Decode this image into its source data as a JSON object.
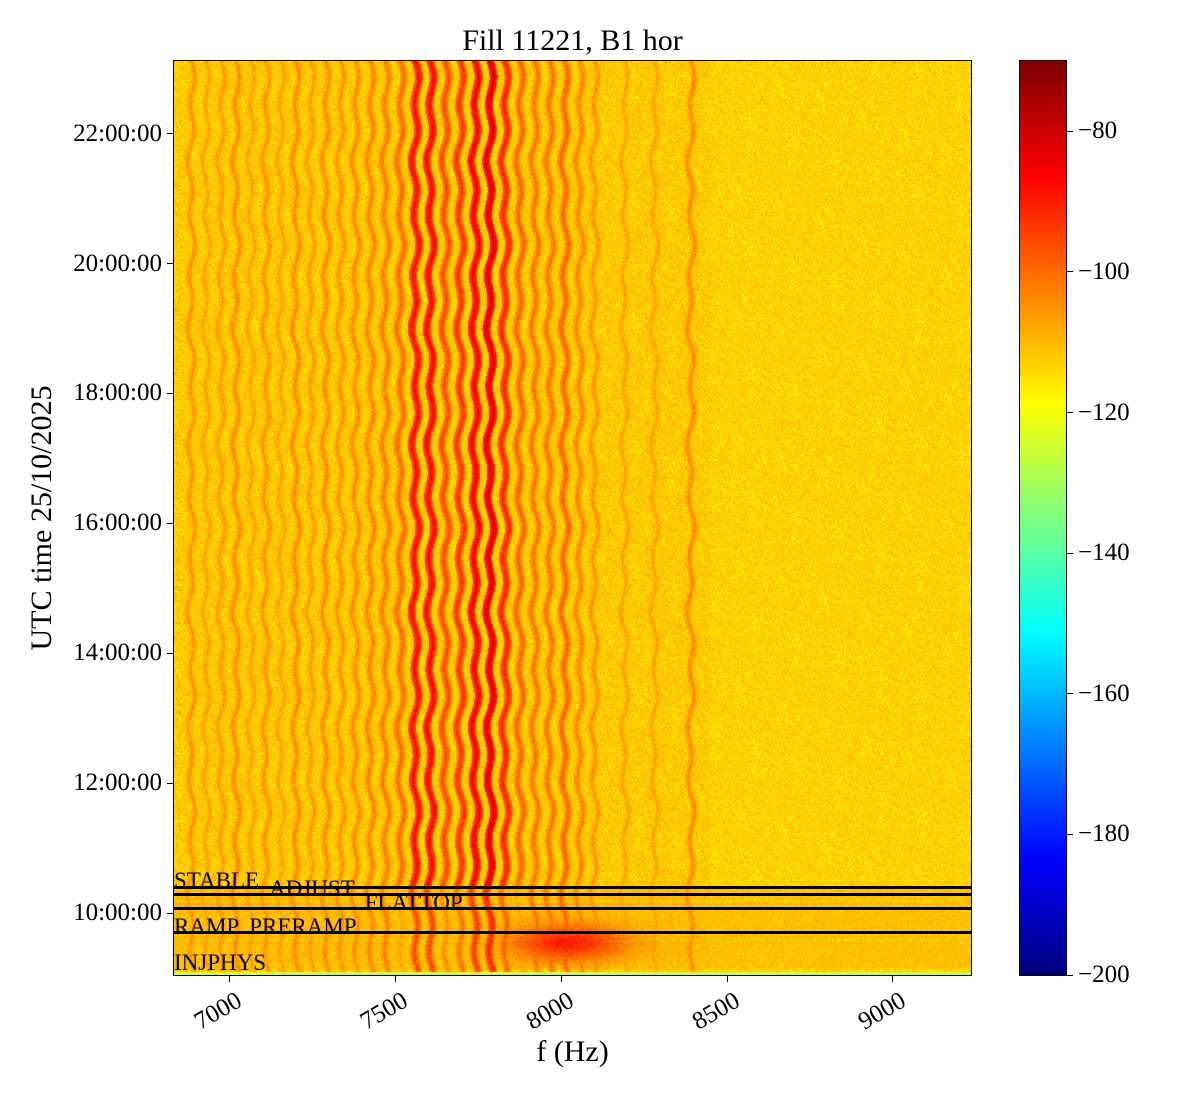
{
  "chart_data": {
    "type": "heatmap",
    "title": "Fill 11221, B1 hor",
    "xlabel": "f (Hz)",
    "ylabel": "UTC time 25/10/2025",
    "xlim": [
      6834,
      9235
    ],
    "ylim": [
      "09:03:00",
      "23:07:00"
    ],
    "xticks": [
      7000,
      7500,
      8000,
      8500,
      9000
    ],
    "xtick_labels": [
      "7000",
      "7500",
      "8000",
      "8500",
      "9000"
    ],
    "yticks": [
      "10:00:00",
      "12:00:00",
      "14:00:00",
      "16:00:00",
      "18:00:00",
      "20:00:00",
      "22:00:00"
    ],
    "colormap": "jet",
    "colorbar": {
      "range": [
        -200,
        -70
      ],
      "ticks": [
        -80,
        -100,
        -120,
        -140,
        -160,
        -180,
        -200
      ],
      "tick_labels": [
        "−80",
        "−100",
        "−120",
        "−140",
        "−160",
        "−180",
        "−200"
      ]
    },
    "background_level_db": -112,
    "spectral_lines": [
      {
        "f": 6885,
        "level": -104
      },
      {
        "f": 6930,
        "level": -106
      },
      {
        "f": 6975,
        "level": -105
      },
      {
        "f": 7020,
        "level": -103
      },
      {
        "f": 7065,
        "level": -106
      },
      {
        "f": 7110,
        "level": -104
      },
      {
        "f": 7155,
        "level": -106
      },
      {
        "f": 7200,
        "level": -103
      },
      {
        "f": 7245,
        "level": -105
      },
      {
        "f": 7290,
        "level": -103
      },
      {
        "f": 7335,
        "level": -104
      },
      {
        "f": 7380,
        "level": -103
      },
      {
        "f": 7425,
        "level": -102
      },
      {
        "f": 7470,
        "level": -101
      },
      {
        "f": 7515,
        "level": -99
      },
      {
        "f": 7560,
        "level": -87
      },
      {
        "f": 7605,
        "level": -86
      },
      {
        "f": 7650,
        "level": -95
      },
      {
        "f": 7695,
        "level": -92
      },
      {
        "f": 7740,
        "level": -85
      },
      {
        "f": 7785,
        "level": -82
      },
      {
        "f": 7830,
        "level": -90
      },
      {
        "f": 7875,
        "level": -98
      },
      {
        "f": 7920,
        "level": -100
      },
      {
        "f": 7965,
        "level": -100
      },
      {
        "f": 8010,
        "level": -98
      },
      {
        "f": 8055,
        "level": -102
      },
      {
        "f": 8100,
        "level": -104
      },
      {
        "f": 8190,
        "level": -106
      },
      {
        "f": 8280,
        "level": -106
      },
      {
        "f": 8390,
        "level": -103
      }
    ],
    "beam_modes": [
      {
        "label": "STABLE",
        "time": "10:24:00"
      },
      {
        "label": "ADJUST",
        "time": "10:17:00"
      },
      {
        "label": "FLATTOP",
        "time": "10:04:00"
      },
      {
        "label": "RAMP",
        "time": "09:42:00"
      },
      {
        "label": "PRERAMP",
        "time": "09:42:00"
      },
      {
        "label": "INJPHYS",
        "time": "09:03:00"
      }
    ]
  }
}
